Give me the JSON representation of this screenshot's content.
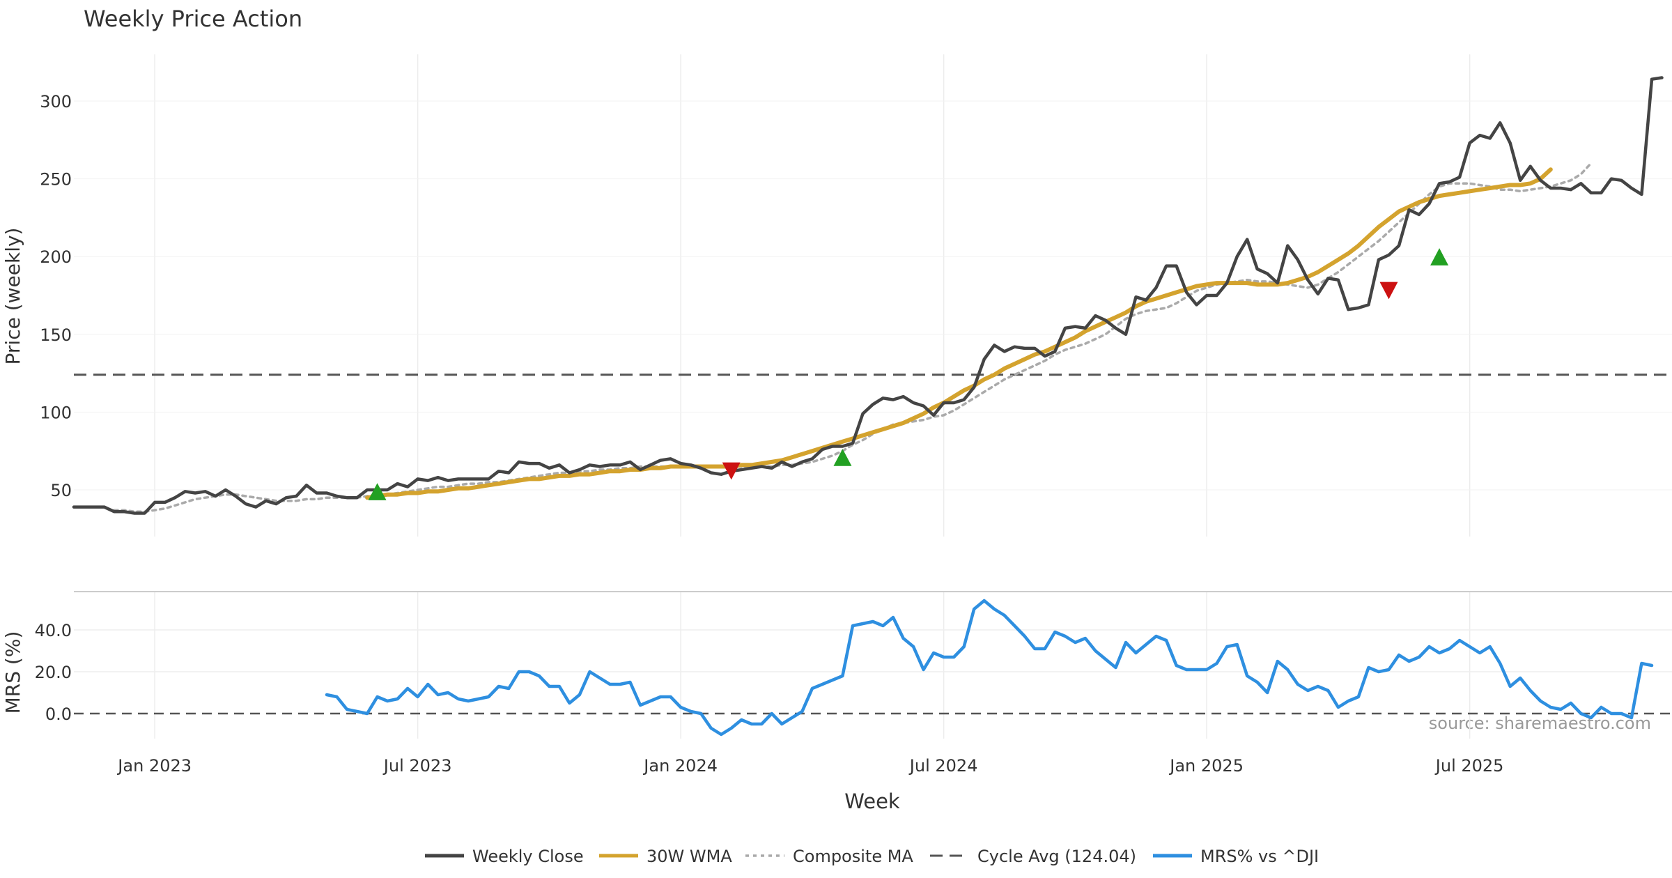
{
  "chart_data": [
    {
      "type": "line",
      "title": "Weekly Price Action",
      "xlabel": "",
      "ylabel": "Price (weekly)",
      "ylim": [
        20,
        330
      ],
      "yticks": [
        50,
        100,
        150,
        200,
        250,
        300
      ],
      "x_start_index": 0,
      "reference_line": {
        "name": "Cycle Avg (124.04)",
        "value": 124.04,
        "style": "dashed"
      },
      "series": [
        {
          "name": "Weekly Close",
          "color": "#444444",
          "values": [
            39,
            39,
            39,
            39,
            36,
            36,
            35,
            35,
            42,
            42,
            45,
            49,
            48,
            49,
            46,
            50,
            46,
            41,
            39,
            43,
            41,
            45,
            46,
            53,
            48,
            48,
            46,
            45,
            45,
            50,
            50,
            50,
            54,
            52,
            57,
            56,
            58,
            56,
            57,
            57,
            57,
            57,
            62,
            61,
            68,
            67,
            67,
            64,
            66,
            61,
            63,
            66,
            65,
            66,
            66,
            68,
            63,
            66,
            69,
            70,
            67,
            66,
            64,
            61,
            60,
            62,
            63,
            64,
            65,
            64,
            68,
            65,
            68,
            70,
            76,
            78,
            78,
            80,
            99,
            105,
            109,
            108,
            110,
            106,
            104,
            98,
            106,
            106,
            108,
            116,
            134,
            143,
            139,
            142,
            141,
            141,
            136,
            139,
            154,
            155,
            154,
            162,
            159,
            154,
            150,
            174,
            172,
            180,
            194,
            194,
            177,
            169,
            175,
            175,
            183,
            200,
            211,
            192,
            189,
            183,
            207,
            198,
            185,
            176,
            186,
            185,
            166,
            167,
            169,
            198,
            201,
            207,
            230,
            227,
            234,
            247,
            248,
            251,
            273,
            278,
            276,
            286,
            273,
            249,
            258,
            249,
            244,
            244,
            243,
            247,
            241,
            241,
            250,
            249,
            244,
            240,
            314,
            315
          ]
        },
        {
          "name": "30W WMA",
          "color": "#D4A32E",
          "start_index": 29,
          "values": [
            45,
            46,
            47,
            47,
            48,
            48,
            49,
            49,
            50,
            51,
            51,
            52,
            53,
            54,
            55,
            56,
            57,
            57,
            58,
            59,
            59,
            60,
            60,
            61,
            62,
            62,
            63,
            63,
            64,
            64,
            65,
            65,
            65,
            65,
            65,
            65,
            65,
            66,
            66,
            67,
            68,
            69,
            71,
            73,
            75,
            77,
            79,
            81,
            83,
            85,
            87,
            89,
            91,
            93,
            96,
            99,
            103,
            106,
            110,
            114,
            117,
            121,
            124,
            128,
            131,
            134,
            137,
            139,
            142,
            145,
            148,
            152,
            155,
            158,
            161,
            164,
            168,
            171,
            173,
            175,
            177,
            179,
            181,
            182,
            183,
            183,
            183,
            183,
            182,
            182,
            182,
            183,
            185,
            187,
            190,
            194,
            198,
            202,
            207,
            213,
            219,
            224,
            229,
            232,
            235,
            237,
            239,
            240,
            241,
            242,
            243,
            244,
            245,
            246,
            246,
            247,
            250,
            256
          ]
        },
        {
          "name": "Composite MA",
          "color": "#AAAAAA",
          "start_index": 4,
          "values": [
            37,
            37,
            36,
            36,
            37,
            38,
            40,
            42,
            44,
            45,
            46,
            47,
            47,
            46,
            45,
            44,
            43,
            43,
            43,
            44,
            44,
            45,
            45,
            45,
            45,
            46,
            47,
            47,
            48,
            49,
            50,
            51,
            52,
            52,
            53,
            54,
            54,
            55,
            55,
            56,
            57,
            58,
            59,
            60,
            61,
            61,
            62,
            62,
            63,
            63,
            64,
            64,
            65,
            65,
            65,
            65,
            65,
            65,
            65,
            65,
            65,
            65,
            65,
            65,
            65,
            65,
            66,
            66,
            67,
            68,
            70,
            72,
            75,
            79,
            82,
            86,
            89,
            92,
            93,
            94,
            95,
            97,
            98,
            101,
            105,
            109,
            113,
            117,
            121,
            124,
            127,
            130,
            133,
            137,
            140,
            142,
            144,
            147,
            150,
            155,
            160,
            163,
            165,
            166,
            167,
            170,
            174,
            178,
            180,
            182,
            183,
            184,
            185,
            184,
            184,
            183,
            182,
            181,
            180,
            182,
            186,
            190,
            195,
            200,
            205,
            210,
            216,
            222,
            228,
            234,
            240,
            245,
            247,
            247,
            247,
            246,
            245,
            243,
            243,
            242,
            243,
            244,
            245,
            247,
            249,
            253,
            260
          ]
        }
      ],
      "markers": [
        {
          "type": "buy",
          "color": "#22A022",
          "index": 30,
          "value": 48
        },
        {
          "type": "sell",
          "color": "#CC1111",
          "index": 65,
          "value": 63
        },
        {
          "type": "buy",
          "color": "#22A022",
          "index": 76,
          "value": 70
        },
        {
          "type": "sell",
          "color": "#CC1111",
          "index": 130,
          "value": 179
        },
        {
          "type": "buy",
          "color": "#22A022",
          "index": 135,
          "value": 199
        }
      ]
    },
    {
      "type": "line",
      "title": "",
      "xlabel": "Week",
      "ylabel": "MRS (%)",
      "ylim": [
        -12,
        58
      ],
      "yticks": [
        "0.0",
        "20.0",
        "40.0"
      ],
      "ytick_values": [
        0,
        20,
        40
      ],
      "x_tick_labels": [
        "Jan 2023",
        "Jul 2023",
        "Jan 2024",
        "Jul 2024",
        "Jan 2025",
        "Jul 2025"
      ],
      "x_tick_indices": [
        8,
        34,
        60,
        86,
        112,
        138
      ],
      "reference_line": {
        "value": 0,
        "style": "dashed"
      },
      "series": [
        {
          "name": "MRS% vs ^DJI",
          "color": "#2E8FE0",
          "start_index": 25,
          "values": [
            9,
            8,
            2,
            1,
            0,
            8,
            6,
            7,
            12,
            8,
            14,
            9,
            10,
            7,
            6,
            7,
            8,
            13,
            12,
            20,
            20,
            18,
            13,
            13,
            5,
            9,
            20,
            17,
            14,
            14,
            15,
            4,
            6,
            8,
            8,
            3,
            1,
            0,
            -7,
            -10,
            -7,
            -3,
            -5,
            -5,
            0,
            -5,
            -2,
            1,
            12,
            14,
            16,
            18,
            42,
            43,
            44,
            42,
            46,
            36,
            32,
            21,
            29,
            27,
            27,
            32,
            50,
            54,
            50,
            47,
            42,
            37,
            31,
            31,
            39,
            37,
            34,
            36,
            30,
            26,
            22,
            34,
            29,
            33,
            37,
            35,
            23,
            21,
            21,
            21,
            24,
            32,
            33,
            18,
            15,
            10,
            25,
            21,
            14,
            11,
            13,
            11,
            3,
            6,
            8,
            22,
            20,
            21,
            28,
            25,
            27,
            32,
            29,
            31,
            35,
            32,
            29,
            32,
            24,
            13,
            17,
            11,
            6,
            3,
            2,
            5,
            0,
            -2,
            3,
            0,
            0,
            -2,
            24,
            23
          ]
        }
      ],
      "annotation": "source: sharemaestro.com"
    }
  ],
  "legend": {
    "placement": "bottom-center",
    "items": [
      {
        "label": "Weekly Close",
        "style": "solid",
        "color": "#444444"
      },
      {
        "label": "30W WMA",
        "style": "solid",
        "color": "#D4A32E"
      },
      {
        "label": "Composite MA",
        "style": "dotted",
        "color": "#AAAAAA"
      },
      {
        "label": "Cycle Avg (124.04)",
        "style": "dashed",
        "color": "#555555"
      },
      {
        "label": "MRS% vs ^DJI",
        "style": "solid",
        "color": "#2E8FE0"
      }
    ]
  }
}
